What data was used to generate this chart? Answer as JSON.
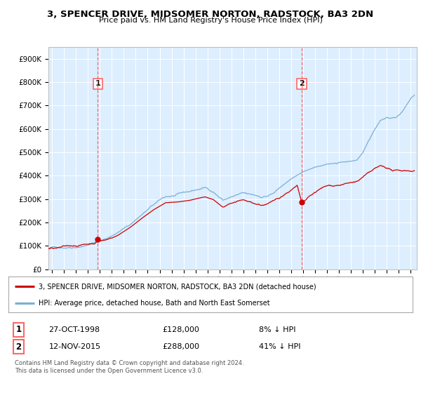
{
  "title": "3, SPENCER DRIVE, MIDSOMER NORTON, RADSTOCK, BA3 2DN",
  "subtitle": "Price paid vs. HM Land Registry's House Price Index (HPI)",
  "sale1_date": "27-OCT-1998",
  "sale1_price": 128000,
  "sale1_label": "8% ↓ HPI",
  "sale2_date": "12-NOV-2015",
  "sale2_price": 288000,
  "sale2_label": "41% ↓ HPI",
  "sale1_x": 1998.82,
  "sale2_x": 2015.87,
  "red_line_color": "#cc0000",
  "blue_line_color": "#7ab0d4",
  "vline_color": "#ff6666",
  "background_color": "#ffffff",
  "plot_bg_color": "#ddeeff",
  "grid_color": "#ffffff",
  "legend_label_red": "3, SPENCER DRIVE, MIDSOMER NORTON, RADSTOCK, BA3 2DN (detached house)",
  "legend_label_blue": "HPI: Average price, detached house, Bath and North East Somerset",
  "footer": "Contains HM Land Registry data © Crown copyright and database right 2024.\nThis data is licensed under the Open Government Licence v3.0.",
  "ylim_min": 0,
  "ylim_max": 950000,
  "xlim_start": 1994.7,
  "xlim_end": 2025.5,
  "hpi_base_points": [
    [
      1994.7,
      90000
    ],
    [
      1995.5,
      93000
    ],
    [
      1996.5,
      99000
    ],
    [
      1997.5,
      108000
    ],
    [
      1998.5,
      122000
    ],
    [
      1999.5,
      140000
    ],
    [
      2000.5,
      168000
    ],
    [
      2001.5,
      200000
    ],
    [
      2002.5,
      245000
    ],
    [
      2003.5,
      285000
    ],
    [
      2004.5,
      315000
    ],
    [
      2005.5,
      320000
    ],
    [
      2006.5,
      330000
    ],
    [
      2007.3,
      340000
    ],
    [
      2007.8,
      345000
    ],
    [
      2008.5,
      330000
    ],
    [
      2009.3,
      295000
    ],
    [
      2009.8,
      305000
    ],
    [
      2010.5,
      315000
    ],
    [
      2011.0,
      318000
    ],
    [
      2011.5,
      310000
    ],
    [
      2012.0,
      305000
    ],
    [
      2012.5,
      300000
    ],
    [
      2013.0,
      305000
    ],
    [
      2013.5,
      315000
    ],
    [
      2014.0,
      335000
    ],
    [
      2014.5,
      355000
    ],
    [
      2015.0,
      375000
    ],
    [
      2015.5,
      390000
    ],
    [
      2016.0,
      405000
    ],
    [
      2016.5,
      415000
    ],
    [
      2017.0,
      425000
    ],
    [
      2017.5,
      430000
    ],
    [
      2018.0,
      438000
    ],
    [
      2018.5,
      440000
    ],
    [
      2019.0,
      445000
    ],
    [
      2019.5,
      448000
    ],
    [
      2020.0,
      450000
    ],
    [
      2020.5,
      455000
    ],
    [
      2021.0,
      490000
    ],
    [
      2021.5,
      545000
    ],
    [
      2022.0,
      600000
    ],
    [
      2022.5,
      640000
    ],
    [
      2023.0,
      650000
    ],
    [
      2023.5,
      645000
    ],
    [
      2024.0,
      660000
    ],
    [
      2024.5,
      690000
    ],
    [
      2025.0,
      730000
    ],
    [
      2025.3,
      745000
    ]
  ],
  "red_base_points": [
    [
      1994.7,
      88000
    ],
    [
      1995.5,
      90000
    ],
    [
      1996.5,
      96000
    ],
    [
      1997.5,
      105000
    ],
    [
      1998.5,
      115000
    ],
    [
      1998.82,
      128000
    ],
    [
      1999.5,
      132000
    ],
    [
      2000.5,
      155000
    ],
    [
      2001.5,
      188000
    ],
    [
      2002.5,
      228000
    ],
    [
      2003.5,
      265000
    ],
    [
      2004.5,
      295000
    ],
    [
      2005.5,
      298000
    ],
    [
      2006.5,
      305000
    ],
    [
      2007.3,
      315000
    ],
    [
      2007.8,
      320000
    ],
    [
      2008.5,
      308000
    ],
    [
      2009.3,
      275000
    ],
    [
      2009.8,
      282000
    ],
    [
      2010.5,
      292000
    ],
    [
      2011.0,
      295000
    ],
    [
      2011.5,
      288000
    ],
    [
      2012.0,
      282000
    ],
    [
      2012.5,
      278000
    ],
    [
      2013.0,
      282000
    ],
    [
      2013.5,
      292000
    ],
    [
      2014.0,
      310000
    ],
    [
      2014.5,
      328000
    ],
    [
      2015.0,
      348000
    ],
    [
      2015.5,
      365000
    ],
    [
      2015.87,
      288000
    ],
    [
      2016.0,
      290000
    ],
    [
      2016.5,
      310000
    ],
    [
      2017.0,
      330000
    ],
    [
      2017.5,
      345000
    ],
    [
      2018.0,
      355000
    ],
    [
      2018.5,
      358000
    ],
    [
      2019.0,
      363000
    ],
    [
      2019.5,
      368000
    ],
    [
      2020.0,
      372000
    ],
    [
      2020.5,
      378000
    ],
    [
      2021.0,
      395000
    ],
    [
      2021.5,
      410000
    ],
    [
      2022.0,
      425000
    ],
    [
      2022.5,
      435000
    ],
    [
      2023.0,
      430000
    ],
    [
      2023.5,
      418000
    ],
    [
      2024.0,
      415000
    ],
    [
      2024.5,
      418000
    ],
    [
      2025.0,
      420000
    ],
    [
      2025.3,
      422000
    ]
  ]
}
